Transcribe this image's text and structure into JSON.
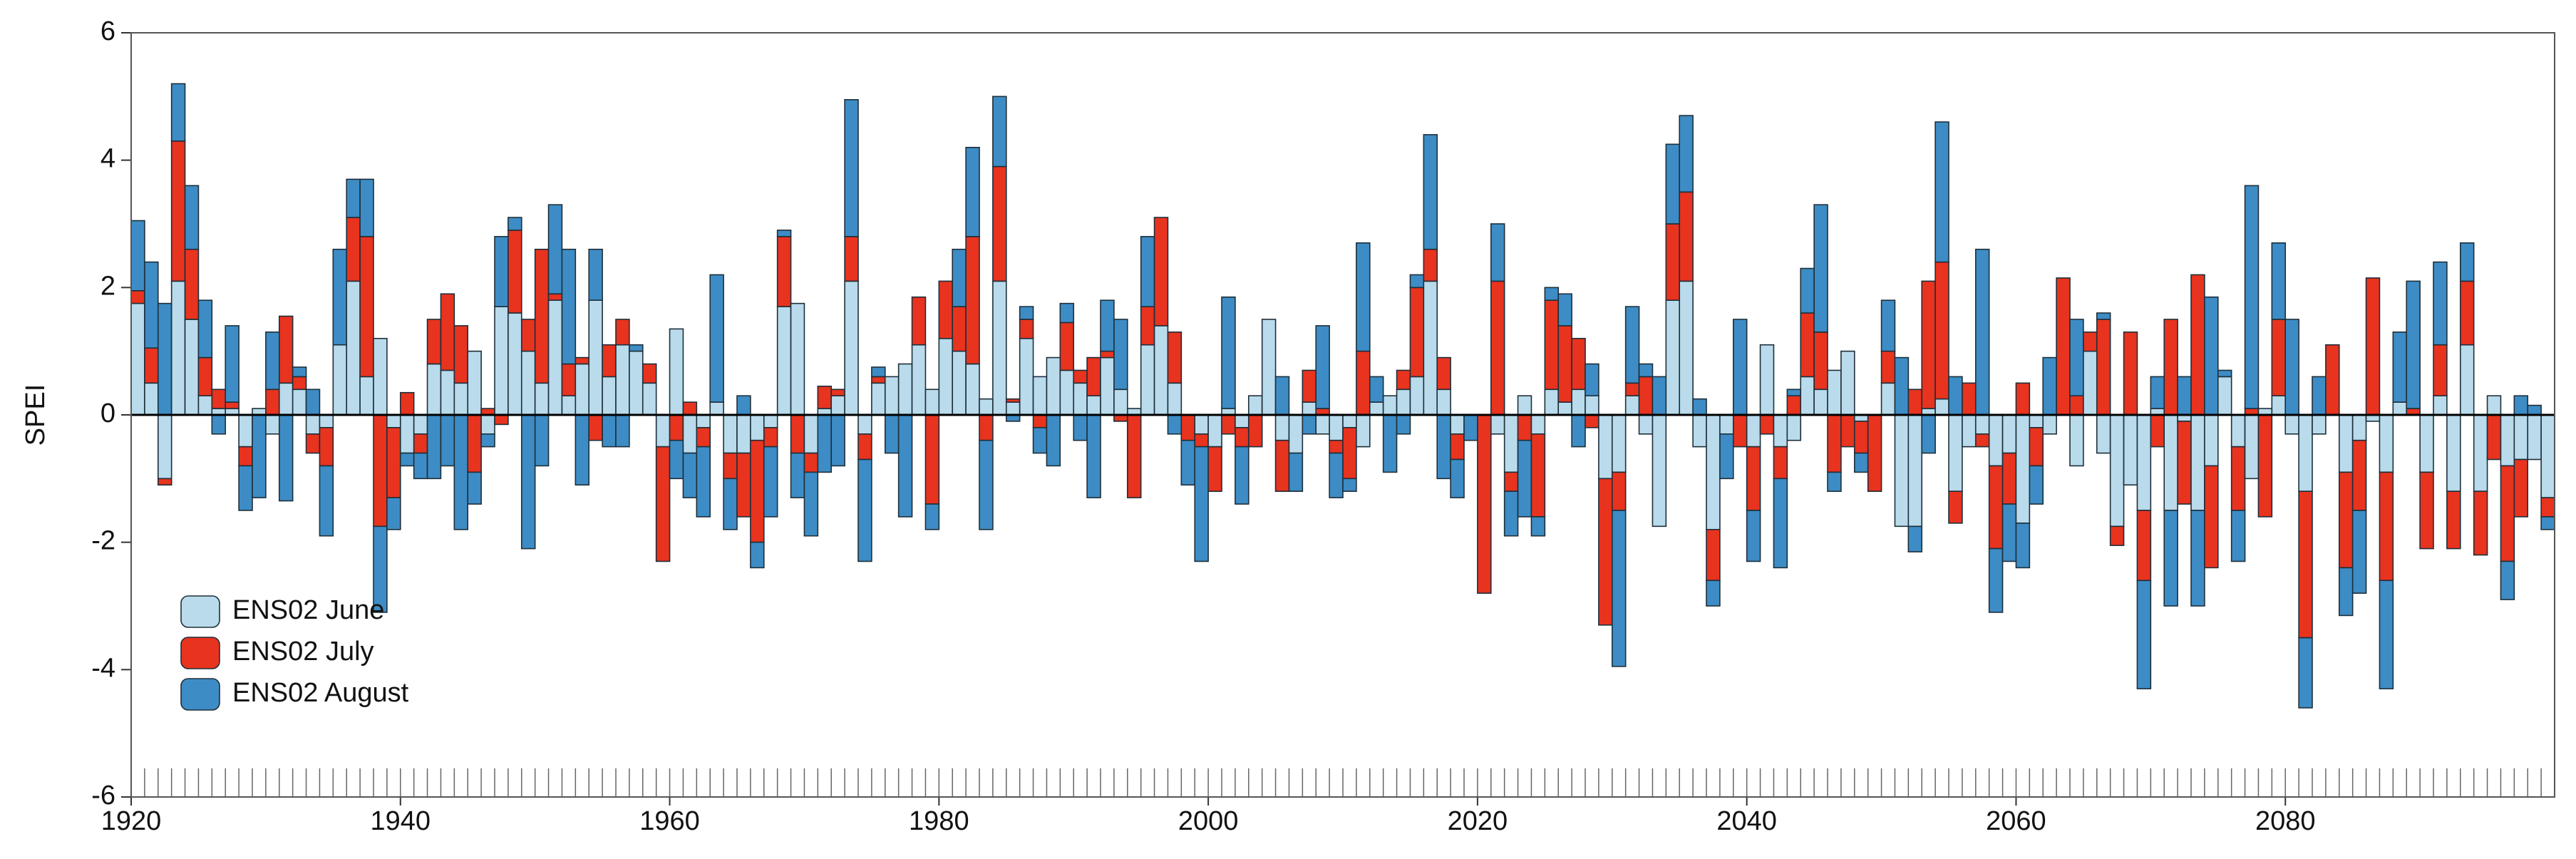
{
  "chart_data": {
    "type": "bar",
    "stacked": true,
    "ylabel": "SPEI",
    "x": [
      1920,
      1921,
      1922,
      1923,
      1924,
      1925,
      1926,
      1927,
      1928,
      1929,
      1930,
      1931,
      1932,
      1933,
      1934,
      1935,
      1936,
      1937,
      1938,
      1939,
      1940,
      1941,
      1942,
      1943,
      1944,
      1945,
      1946,
      1947,
      1948,
      1949,
      1950,
      1951,
      1952,
      1953,
      1954,
      1955,
      1956,
      1957,
      1958,
      1959,
      1960,
      1961,
      1962,
      1963,
      1964,
      1965,
      1966,
      1967,
      1968,
      1969,
      1970,
      1971,
      1972,
      1973,
      1974,
      1975,
      1976,
      1977,
      1978,
      1979,
      1980,
      1981,
      1982,
      1983,
      1984,
      1985,
      1986,
      1987,
      1988,
      1989,
      1990,
      1991,
      1992,
      1993,
      1994,
      1995,
      1996,
      1997,
      1998,
      1999,
      2000,
      2001,
      2002,
      2003,
      2004,
      2005,
      2006,
      2007,
      2008,
      2009,
      2010,
      2011,
      2012,
      2013,
      2014,
      2015,
      2016,
      2017,
      2018,
      2019,
      2020,
      2021,
      2022,
      2023,
      2024,
      2025,
      2026,
      2027,
      2028,
      2029,
      2030,
      2031,
      2032,
      2033,
      2034,
      2035,
      2036,
      2037,
      2038,
      2039,
      2040,
      2041,
      2042,
      2043,
      2044,
      2045,
      2046,
      2047,
      2048,
      2049,
      2050,
      2051,
      2052,
      2053,
      2054,
      2055,
      2056,
      2057,
      2058,
      2059,
      2060,
      2061,
      2062,
      2063,
      2064,
      2065,
      2066,
      2067,
      2068,
      2069,
      2070,
      2071,
      2072,
      2073,
      2074,
      2075,
      2076,
      2077,
      2078,
      2079,
      2080,
      2081,
      2082,
      2083,
      2084,
      2085,
      2086,
      2087,
      2088,
      2089,
      2090,
      2091,
      2092,
      2093,
      2094,
      2095,
      2096,
      2097,
      2098,
      2099
    ],
    "series": [
      {
        "name": "ENS02 June",
        "color": "#b9dbec",
        "values": [
          1.75,
          0.5,
          -1.0,
          2.1,
          1.5,
          0.3,
          0.1,
          0.1,
          -0.5,
          0.1,
          -0.3,
          0.5,
          0.4,
          -0.3,
          -0.2,
          1.1,
          2.1,
          0.6,
          1.2,
          -0.2,
          -0.6,
          -0.3,
          0.8,
          0.7,
          0.5,
          1.0,
          -0.3,
          1.7,
          1.6,
          1.0,
          0.5,
          1.8,
          0.3,
          0.8,
          1.8,
          0.6,
          1.1,
          1.0,
          0.5,
          -0.5,
          1.35,
          -0.6,
          -0.2,
          0.2,
          -0.6,
          -0.6,
          -0.4,
          -0.2,
          1.7,
          1.75,
          -0.6,
          0.1,
          0.3,
          2.1,
          -0.3,
          0.5,
          0.6,
          0.8,
          1.1,
          0.4,
          1.2,
          1.0,
          0.8,
          0.25,
          2.1,
          0.2,
          1.2,
          0.6,
          0.9,
          0.7,
          0.5,
          0.3,
          0.9,
          0.4,
          0.1,
          1.1,
          1.4,
          0.5,
          0.0,
          -0.3,
          -0.5,
          0.1,
          -0.2,
          0.3,
          1.5,
          -0.4,
          -0.6,
          0.2,
          -0.3,
          -0.4,
          -0.2,
          -0.5,
          0.2,
          0.3,
          0.4,
          0.6,
          2.1,
          0.4,
          -0.3,
          0.0,
          0.0,
          -0.3,
          -0.9,
          0.3,
          -0.3,
          0.4,
          0.2,
          0.4,
          0.3,
          -1.0,
          -0.9,
          0.3,
          -0.3,
          -1.75,
          1.8,
          2.1,
          -0.5,
          -1.8,
          -0.3,
          0.0,
          -0.5,
          1.1,
          -0.5,
          -0.4,
          0.6,
          0.4,
          0.7,
          1.0,
          -0.1,
          0.0,
          0.5,
          -1.75,
          -1.75,
          0.1,
          0.25,
          -1.2,
          -0.5,
          -0.3,
          -0.8,
          -0.6,
          -1.7,
          -0.2,
          -0.3,
          0.0,
          -0.8,
          1.0,
          -0.6,
          -1.75,
          -1.1,
          -1.5,
          0.1,
          -1.5,
          -0.1,
          -1.5,
          -0.8,
          0.6,
          -0.5,
          -1.0,
          0.1,
          0.3,
          -0.3,
          -1.2,
          -0.3,
          0.0,
          -0.9,
          -0.4,
          -0.1,
          -0.9,
          0.2,
          0.0,
          -0.9,
          0.3,
          -1.2,
          1.1,
          -1.2,
          0.3,
          -0.8,
          -0.7,
          -0.7,
          -1.3
        ]
      },
      {
        "name": "ENS02 July",
        "color": "#e8331f",
        "values": [
          0.2,
          0.55,
          -0.1,
          2.2,
          1.1,
          0.6,
          0.3,
          0.1,
          -0.3,
          0.0,
          0.4,
          1.05,
          0.2,
          -0.3,
          -0.6,
          0.0,
          1.0,
          2.2,
          -1.75,
          -1.1,
          0.35,
          -0.3,
          0.7,
          1.2,
          0.9,
          -0.9,
          0.1,
          -0.15,
          1.3,
          0.5,
          2.1,
          0.1,
          0.5,
          0.1,
          -0.4,
          0.5,
          0.4,
          0.0,
          0.3,
          -1.8,
          -0.4,
          0.2,
          -0.3,
          0.0,
          -0.4,
          -1.0,
          -1.6,
          -0.3,
          1.1,
          -0.6,
          -0.3,
          0.35,
          0.1,
          0.7,
          -0.4,
          0.1,
          0.0,
          0.0,
          0.75,
          -1.4,
          0.9,
          0.7,
          2.0,
          -0.4,
          1.8,
          0.05,
          0.3,
          -0.2,
          0.0,
          0.75,
          0.2,
          0.6,
          0.1,
          -0.1,
          -1.3,
          0.6,
          1.7,
          0.8,
          -0.4,
          -0.2,
          -0.7,
          -0.3,
          -0.3,
          -0.5,
          0.0,
          -0.8,
          0.0,
          0.5,
          0.1,
          -0.2,
          -0.8,
          1.0,
          0.0,
          0.0,
          0.3,
          1.4,
          0.5,
          0.5,
          -0.4,
          0.0,
          -2.8,
          2.1,
          -0.3,
          -0.4,
          -1.3,
          1.4,
          1.2,
          0.8,
          -0.2,
          -2.3,
          -0.6,
          0.2,
          0.6,
          0.0,
          1.2,
          1.4,
          0.0,
          -0.8,
          0.0,
          -0.5,
          -1.0,
          -0.3,
          -0.5,
          0.3,
          1.0,
          0.9,
          -0.9,
          -0.5,
          -0.5,
          -1.2,
          0.5,
          0.0,
          0.4,
          2.0,
          2.15,
          -0.5,
          0.5,
          -0.2,
          -1.3,
          -0.8,
          0.5,
          -0.6,
          0.0,
          2.15,
          0.3,
          0.3,
          1.5,
          -0.3,
          1.3,
          -1.1,
          -0.5,
          1.5,
          -1.3,
          2.2,
          -1.6,
          0.0,
          -1.0,
          0.1,
          -1.6,
          1.2,
          0.0,
          -2.3,
          0.0,
          1.1,
          -1.5,
          -1.1,
          2.15,
          -1.7,
          0.0,
          0.1,
          -1.2,
          0.8,
          -0.9,
          1.0,
          -1.0,
          -0.7,
          -1.5,
          -0.9,
          0.0,
          -0.3
        ]
      },
      {
        "name": "ENS02 August",
        "color": "#3d8cc5",
        "values": [
          1.1,
          1.35,
          1.75,
          0.9,
          1.0,
          0.9,
          -0.3,
          1.2,
          -0.7,
          -1.3,
          0.9,
          -1.35,
          0.15,
          0.4,
          -1.1,
          1.5,
          0.6,
          0.9,
          -1.35,
          -0.5,
          -0.2,
          -0.4,
          -1.0,
          -0.8,
          -1.8,
          -0.5,
          -0.2,
          1.1,
          0.2,
          -2.1,
          -0.8,
          1.4,
          1.8,
          -1.1,
          0.8,
          -0.5,
          -0.5,
          0.1,
          0.0,
          0.0,
          -0.6,
          -0.7,
          -1.1,
          2.0,
          -0.8,
          0.3,
          -0.4,
          -1.1,
          0.1,
          -0.7,
          -1.0,
          -0.9,
          -0.8,
          2.15,
          -1.6,
          0.15,
          -0.6,
          -1.6,
          0.0,
          -0.4,
          0.0,
          0.9,
          1.4,
          -1.4,
          1.1,
          -0.1,
          0.2,
          -0.4,
          -0.8,
          0.3,
          -0.4,
          -1.3,
          0.8,
          1.1,
          0.0,
          1.1,
          0.0,
          -0.3,
          -0.7,
          -1.8,
          0.0,
          1.75,
          -0.9,
          0.0,
          0.0,
          0.6,
          -0.6,
          -0.3,
          1.3,
          -0.7,
          -0.2,
          1.7,
          0.4,
          -0.9,
          -0.3,
          0.2,
          1.8,
          -1.0,
          -0.6,
          -0.4,
          0.0,
          0.9,
          -0.7,
          -1.2,
          -0.3,
          0.2,
          0.5,
          -0.5,
          0.5,
          0.0,
          -2.45,
          1.2,
          0.2,
          0.6,
          1.25,
          1.2,
          0.25,
          -0.4,
          -0.7,
          1.5,
          -0.8,
          0.0,
          -1.4,
          0.1,
          0.7,
          2.0,
          -0.3,
          0.0,
          -0.3,
          0.0,
          0.8,
          0.9,
          -0.4,
          -0.6,
          2.2,
          0.6,
          0.0,
          2.6,
          -1.0,
          -0.9,
          -0.7,
          -0.6,
          0.9,
          0.0,
          1.2,
          0.0,
          0.1,
          0.0,
          0.0,
          -1.7,
          0.5,
          -1.5,
          0.6,
          -1.5,
          1.85,
          0.1,
          -0.8,
          3.5,
          0.0,
          1.2,
          1.5,
          -1.1,
          0.6,
          0.0,
          -0.75,
          -1.3,
          0.0,
          -1.7,
          1.1,
          2.0,
          0.0,
          1.3,
          0.0,
          0.6,
          0.0,
          0.0,
          -0.6,
          0.3,
          0.15,
          -0.2
        ]
      }
    ],
    "xlim": [
      1920,
      2100
    ],
    "xticks": [
      1920,
      1940,
      1960,
      1980,
      2000,
      2020,
      2040,
      2060,
      2080
    ],
    "ylim": [
      -6,
      6
    ],
    "yticks": [
      -6,
      -4,
      -2,
      0,
      2,
      4,
      6
    ],
    "legend": "lower left"
  }
}
